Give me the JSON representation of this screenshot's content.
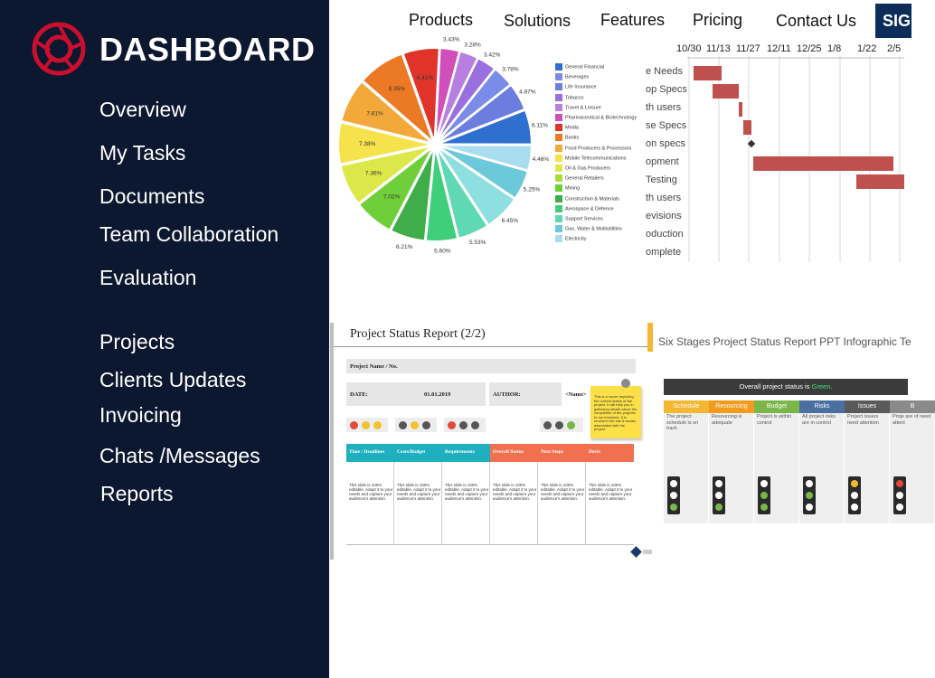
{
  "app": {
    "brand": "DASHBOARD",
    "logo_icon": "camera-lens-logo",
    "accent_color": "#c8102e",
    "sidebar_bg": "#0c1730"
  },
  "sidebar": {
    "items": [
      {
        "label": "Overview"
      },
      {
        "label": "My Tasks"
      },
      {
        "label": "Documents"
      },
      {
        "label": "Team Collaboration"
      },
      {
        "label": "Evaluation"
      },
      {
        "label": "Projects"
      },
      {
        "label": "Clients Updates"
      },
      {
        "label": "Invoicing"
      },
      {
        "label": "Chats /Messages"
      },
      {
        "label": "Reports"
      }
    ]
  },
  "topnav": {
    "items": [
      {
        "label": "Products"
      },
      {
        "label": "Solutions"
      },
      {
        "label": "Features"
      },
      {
        "label": "Pricing"
      },
      {
        "label": "Contact Us"
      }
    ],
    "signup_label": "SIG"
  },
  "pie": {
    "labels": [
      "3.43%",
      "3.28%",
      "3.42%",
      "3.78%",
      "4.87%",
      "6.11%",
      "4.46%",
      "5.25%",
      "6.45%",
      "5.53%",
      "5.60%",
      "6.21%",
      "7.02%",
      "7.36%",
      "7.38%",
      "7.81%",
      "8.35%",
      "6.41%"
    ],
    "legend": [
      {
        "name": "General Financial",
        "color": "#2f6fce"
      },
      {
        "name": "Beverages",
        "color": "#7b8be8"
      },
      {
        "name": "Life Insurance",
        "color": "#6c7de0"
      },
      {
        "name": "Tobacco",
        "color": "#9a6fe0"
      },
      {
        "name": "Travel & Leisure",
        "color": "#b67fe0"
      },
      {
        "name": "Pharmaceutical & Biotechnology",
        "color": "#d04fb8"
      },
      {
        "name": "Media",
        "color": "#e0342a"
      },
      {
        "name": "Banks",
        "color": "#ec7a25"
      },
      {
        "name": "Food Producers & Processors",
        "color": "#f2a93a"
      },
      {
        "name": "Mobile Telecommunications",
        "color": "#f6e24a"
      },
      {
        "name": "Oil & Gas Producers",
        "color": "#dce84a"
      },
      {
        "name": "General Retailers",
        "color": "#a9dc3a"
      },
      {
        "name": "Mining",
        "color": "#6fcf3a"
      },
      {
        "name": "Construction & Materials",
        "color": "#3fae4a"
      },
      {
        "name": "Aerospace & Defence",
        "color": "#3fcf7a"
      },
      {
        "name": "Support Services",
        "color": "#5fd9b4"
      },
      {
        "name": "Gas, Water & Multiutilities",
        "color": "#6cc9d9"
      },
      {
        "name": "Electricity",
        "color": "#aadcf0"
      }
    ]
  },
  "gantt": {
    "dates": [
      "10/30",
      "11/13",
      "11/27",
      "12/11",
      "12/25",
      "1/8",
      "1/22",
      "2/5"
    ],
    "tasks": [
      {
        "label": "e Needs"
      },
      {
        "label": "op Specs"
      },
      {
        "label": "th users"
      },
      {
        "label": "se Specs"
      },
      {
        "label": "on specs"
      },
      {
        "label": "opment"
      },
      {
        "label": "Testing"
      },
      {
        "label": "th users"
      },
      {
        "label": "evisions"
      },
      {
        "label": "oduction"
      },
      {
        "label": "omplete"
      }
    ],
    "bar_color": "#c0504d"
  },
  "report": {
    "title": "Project Status Report (2/2)",
    "project_name_label": "Project Name / No.",
    "date_label": "DATE:",
    "date_value": "01.01.2019",
    "author_label": "AUTHOR:",
    "author_value": "<Name>",
    "sticky_note": "This is a report depicting the current status of the project. It will help you in gathering details about the completion of the projects to our investors. It is crucial in the risk & issues associated with the project.",
    "columns": [
      {
        "label": "Time / Deadlines",
        "color": "#1fb0c0"
      },
      {
        "label": "Costs/Budget",
        "color": "#1fb0c0"
      },
      {
        "label": "Requirements",
        "color": "#1fb0c0"
      },
      {
        "label": "Overall Status",
        "color": "#f07050"
      },
      {
        "label": "Next Steps",
        "color": "#f07050"
      },
      {
        "label": "Devis",
        "color": "#f07050"
      }
    ],
    "cell_text": "This slide is 100% editable. Adapt it to your needs and capture your audience's attention."
  },
  "infographic": {
    "title": "Six Stages Project Status Report PPT Infographic Te",
    "overall_prefix": "Overall project status is ",
    "overall_value": "Green.",
    "stages": [
      {
        "name": "Schedule",
        "color": "#f5b731",
        "text": "The project schedule is on track"
      },
      {
        "name": "Resourcing",
        "color": "#f29b1d",
        "text": "Resourcing is adequate"
      },
      {
        "name": "Budget",
        "color": "#7ab648",
        "text": "Project is within control"
      },
      {
        "name": "Risks",
        "color": "#4a6fa0",
        "text": "All project risks are in control"
      },
      {
        "name": "Issues",
        "color": "#5a5a5a",
        "text": "Project issues need attention"
      },
      {
        "name": "B",
        "color": "#8a8a8a",
        "text": "Proje are of need attent"
      }
    ]
  }
}
